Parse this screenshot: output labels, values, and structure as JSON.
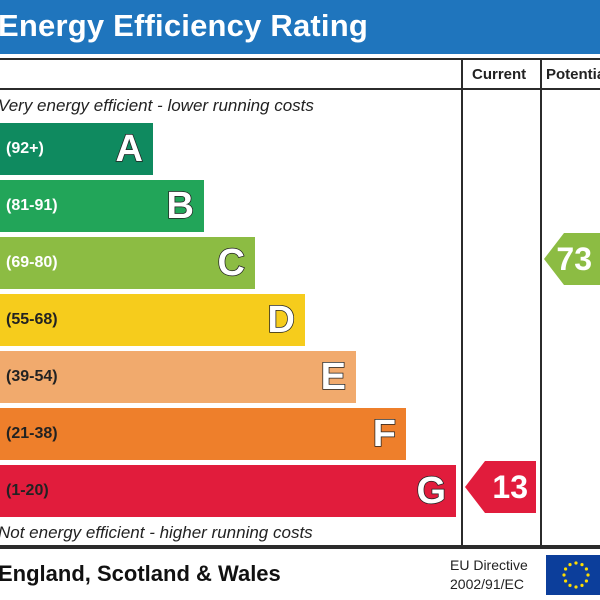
{
  "header": {
    "title": "Energy Efficiency Rating"
  },
  "columns": {
    "current_label": "Current",
    "potential_label": "Potential"
  },
  "notes": {
    "top": "Very energy efficient - lower running costs",
    "bottom": "Not energy efficient - higher running costs"
  },
  "footer": {
    "region": "England, Scotland & Wales",
    "eu_line1": "EU Directive",
    "eu_line2": "2002/91/EC"
  },
  "colors": {
    "header": "#1f75bd",
    "A": "#0f8a5f",
    "B": "#22a559",
    "C": "#8cbc43",
    "D": "#f6cc1c",
    "E": "#f1aa6d",
    "F": "#ee7f2b",
    "G": "#e11c3c",
    "current": "#e11c3c",
    "potential": "#8cbc43"
  },
  "chart_data": {
    "type": "bar",
    "title": "Energy Efficiency Rating",
    "categories": [
      "A",
      "B",
      "C",
      "D",
      "E",
      "F",
      "G"
    ],
    "ranges": [
      "(92+)",
      "(81-91)",
      "(69-80)",
      "(55-68)",
      "(39-54)",
      "(21-38)",
      "(1-20)"
    ],
    "current": {
      "value": "13",
      "band": "G"
    },
    "potential": {
      "value": "73",
      "band": "C"
    }
  }
}
